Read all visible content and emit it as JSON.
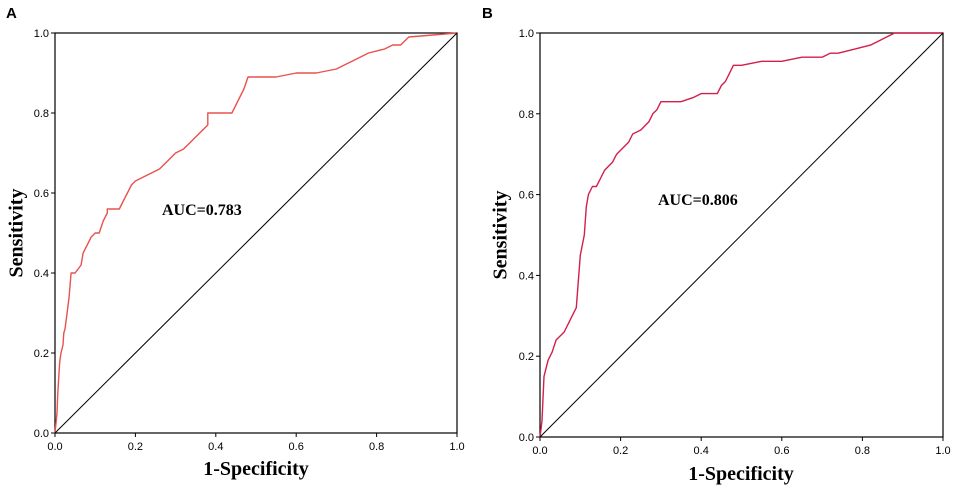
{
  "chart_data": [
    {
      "panel": "A",
      "type": "line",
      "xlabel": "1-Specificity",
      "ylabel": "Sensitivity",
      "xlim": [
        0,
        1
      ],
      "ylim": [
        0,
        1
      ],
      "xticks": [
        "0.0",
        "0.2",
        "0.4",
        "0.6",
        "0.8",
        "1.0"
      ],
      "yticks": [
        "0.0",
        "0.2",
        "0.4",
        "0.6",
        "0.8",
        "1.0"
      ],
      "annotation": "AUC=0.783",
      "auc": 0.783,
      "grid": false,
      "series": [
        {
          "name": "ROC",
          "color": "#e8524f",
          "x": [
            0,
            0.005,
            0.007,
            0.01,
            0.012,
            0.015,
            0.02,
            0.022,
            0.025,
            0.03,
            0.035,
            0.04,
            0.045,
            0.05,
            0.065,
            0.07,
            0.08,
            0.09,
            0.1,
            0.11,
            0.12,
            0.13,
            0.13,
            0.16,
            0.17,
            0.18,
            0.19,
            0.2,
            0.22,
            0.24,
            0.26,
            0.28,
            0.3,
            0.32,
            0.34,
            0.36,
            0.38,
            0.38,
            0.4,
            0.44,
            0.45,
            0.46,
            0.47,
            0.48,
            0.5,
            0.55,
            0.6,
            0.65,
            0.7,
            0.72,
            0.74,
            0.78,
            0.82,
            0.84,
            0.86,
            0.87,
            0.88,
            1.0
          ],
          "y": [
            0,
            0.05,
            0.1,
            0.15,
            0.18,
            0.2,
            0.22,
            0.25,
            0.26,
            0.3,
            0.34,
            0.4,
            0.4,
            0.4,
            0.42,
            0.45,
            0.47,
            0.49,
            0.5,
            0.5,
            0.53,
            0.55,
            0.56,
            0.56,
            0.58,
            0.6,
            0.62,
            0.63,
            0.64,
            0.65,
            0.66,
            0.68,
            0.7,
            0.71,
            0.73,
            0.75,
            0.77,
            0.8,
            0.8,
            0.8,
            0.82,
            0.84,
            0.86,
            0.89,
            0.89,
            0.89,
            0.9,
            0.9,
            0.91,
            0.92,
            0.93,
            0.95,
            0.96,
            0.97,
            0.97,
            0.98,
            0.99,
            1.0
          ]
        },
        {
          "name": "Reference",
          "color": "#000000",
          "x": [
            0,
            1
          ],
          "y": [
            0,
            1
          ]
        }
      ]
    },
    {
      "panel": "B",
      "type": "line",
      "xlabel": "1-Specificity",
      "ylabel": "Sensitivity",
      "xlim": [
        0,
        1
      ],
      "ylim": [
        0,
        1
      ],
      "xticks": [
        "0.0",
        "0.2",
        "0.4",
        "0.6",
        "0.8",
        "1.0"
      ],
      "yticks": [
        "0.0",
        "0.2",
        "0.4",
        "0.6",
        "0.8",
        "1.0"
      ],
      "annotation": "AUC=0.806",
      "auc": 0.806,
      "grid": false,
      "series": [
        {
          "name": "ROC",
          "color": "#d21f4b",
          "x": [
            0,
            0.005,
            0.01,
            0.02,
            0.03,
            0.04,
            0.06,
            0.07,
            0.08,
            0.09,
            0.1,
            0.11,
            0.115,
            0.12,
            0.13,
            0.14,
            0.15,
            0.16,
            0.17,
            0.18,
            0.19,
            0.2,
            0.22,
            0.23,
            0.25,
            0.27,
            0.28,
            0.29,
            0.3,
            0.32,
            0.35,
            0.38,
            0.4,
            0.44,
            0.45,
            0.46,
            0.47,
            0.48,
            0.5,
            0.55,
            0.6,
            0.65,
            0.7,
            0.72,
            0.74,
            0.78,
            0.82,
            0.84,
            0.86,
            0.88,
            1.0
          ],
          "y": [
            0,
            0.04,
            0.15,
            0.19,
            0.21,
            0.24,
            0.26,
            0.28,
            0.3,
            0.32,
            0.45,
            0.5,
            0.57,
            0.6,
            0.62,
            0.62,
            0.64,
            0.66,
            0.67,
            0.68,
            0.7,
            0.71,
            0.73,
            0.75,
            0.76,
            0.78,
            0.8,
            0.81,
            0.83,
            0.83,
            0.83,
            0.84,
            0.85,
            0.85,
            0.87,
            0.88,
            0.9,
            0.92,
            0.92,
            0.93,
            0.93,
            0.94,
            0.94,
            0.95,
            0.95,
            0.96,
            0.97,
            0.98,
            0.99,
            1.0,
            1.0
          ]
        },
        {
          "name": "Reference",
          "color": "#000000",
          "x": [
            0,
            1
          ],
          "y": [
            0,
            1
          ]
        }
      ]
    }
  ]
}
